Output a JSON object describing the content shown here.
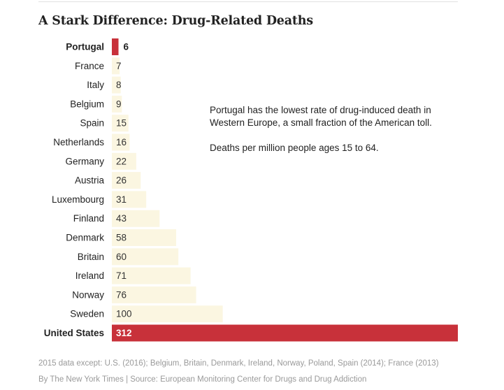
{
  "chart_data": {
    "type": "bar",
    "orientation": "horizontal",
    "title": "A Stark Difference: Drug-Related Deaths",
    "categories": [
      "Portugal",
      "France",
      "Italy",
      "Belgium",
      "Spain",
      "Netherlands",
      "Germany",
      "Austria",
      "Luxembourg",
      "Finland",
      "Denmark",
      "Britain",
      "Ireland",
      "Norway",
      "Sweden",
      "United States"
    ],
    "values": [
      6,
      7,
      8,
      9,
      15,
      16,
      22,
      26,
      31,
      43,
      58,
      60,
      71,
      76,
      100,
      312
    ],
    "highlighted": [
      "Portugal",
      "United States"
    ],
    "xlim": [
      0,
      312
    ],
    "grid": false,
    "legend": "none",
    "colors": {
      "highlight": "#c8313a",
      "default": "#fbf6e1",
      "label_on_highlight": "#ffffff",
      "label_default": "#333333"
    },
    "annotation": [
      "Portugal has the lowest rate of drug-induced death in Western Europe, a small fraction of the American toll.",
      "Deaths per million people ages 15 to 64."
    ]
  },
  "footnote": "2015 data except: U.S. (2016); Belgium, Britain, Denmark, Ireland, Norway, Poland, Spain (2014); France (2013)",
  "credit": "By The New York Times | Source: European Monitoring Center for Drugs and Drug Addiction"
}
